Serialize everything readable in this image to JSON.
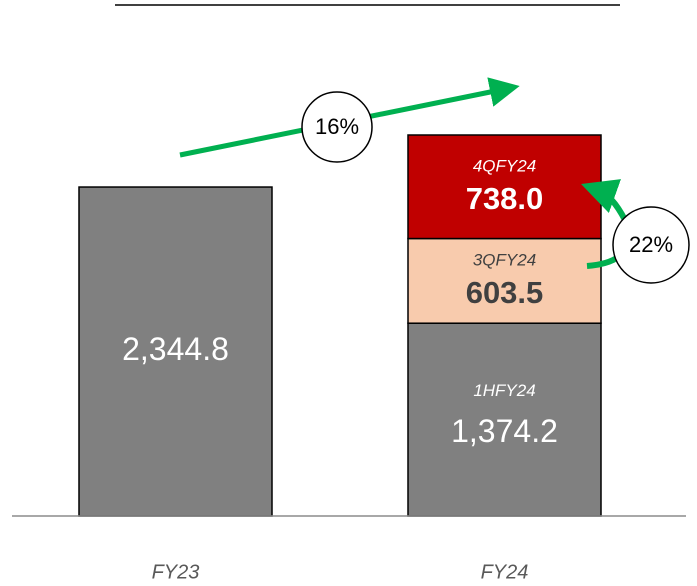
{
  "chart_data": {
    "type": "stacked_bar",
    "categories": [
      "FY23",
      "FY24"
    ],
    "series": [
      {
        "name": "1HFY24",
        "color": "#808080",
        "values": [
          2344.8,
          1374.2
        ],
        "value_labels": [
          "2,344.8",
          "1,374.2"
        ]
      },
      {
        "name": "3QFY24",
        "color": "#f8cbad",
        "values": [
          null,
          603.5
        ],
        "value_labels": [
          null,
          "603.5"
        ]
      },
      {
        "name": "4QFY24",
        "color": "#c00000",
        "values": [
          null,
          738.0
        ],
        "value_labels": [
          null,
          "738.0"
        ]
      }
    ],
    "annotations": [
      "16%",
      "22%"
    ]
  }
}
